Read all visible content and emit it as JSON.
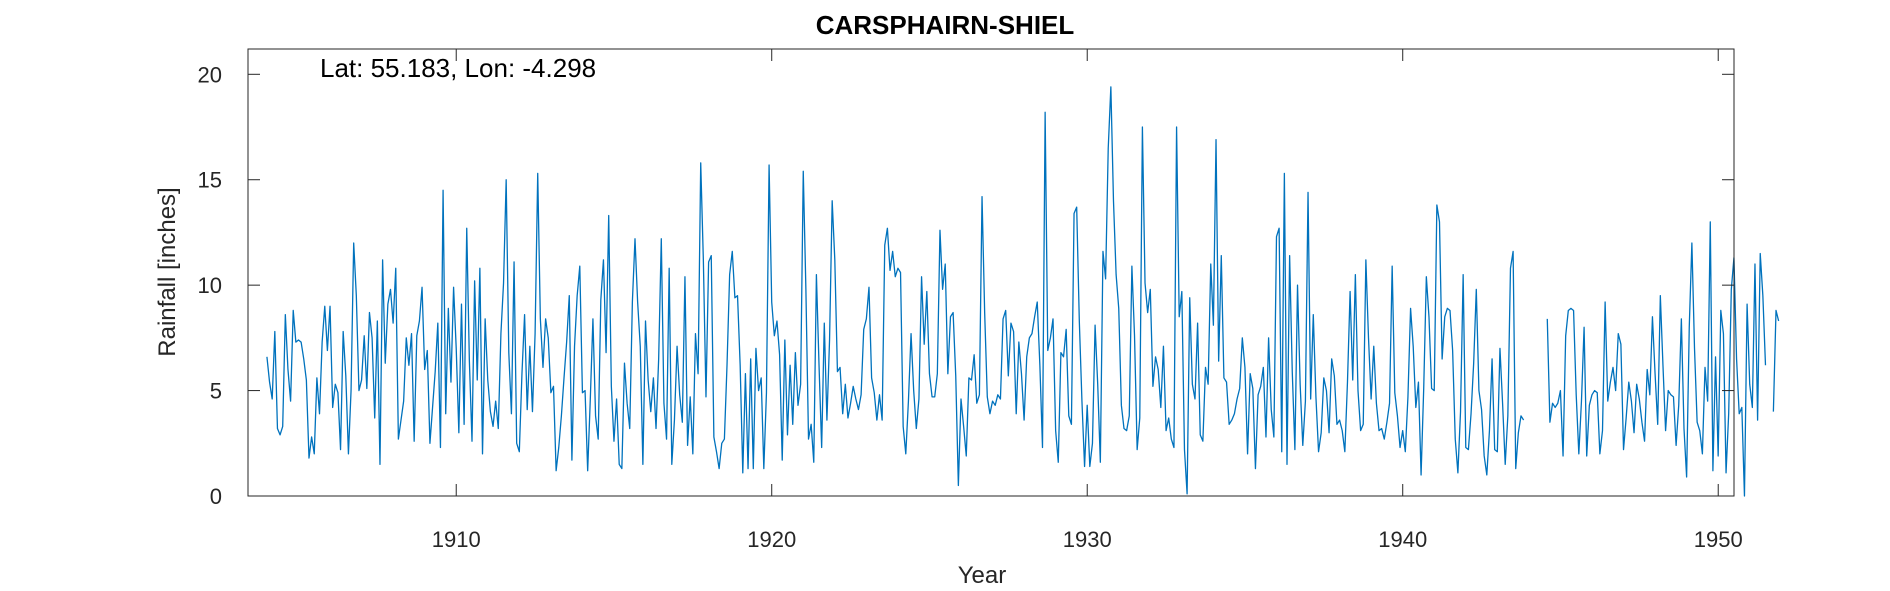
{
  "chart_data": {
    "type": "line",
    "title": "CARSPHAIRN-SHIEL",
    "xlabel": "Year",
    "ylabel": "Rainfall [inches]",
    "annotation": "Lat: 55.183, Lon: -4.298",
    "xlim": [
      1903.4,
      1950.5
    ],
    "ylim": [
      0,
      21.2
    ],
    "xticks": [
      1910,
      1920,
      1930,
      1940,
      1950
    ],
    "yticks": [
      0,
      5,
      10,
      15,
      20
    ],
    "grid": false,
    "legend": "none",
    "line_color": "#0072BD",
    "series": [
      {
        "start": 1904.0,
        "step": 0.08333,
        "values": [
          6.6,
          5.4,
          4.6,
          7.8,
          3.2,
          2.9,
          3.3,
          8.6,
          6.0,
          4.5,
          8.8,
          7.3,
          7.4,
          7.3,
          6.5,
          5.5,
          1.8,
          2.8,
          2.0,
          5.6,
          3.9,
          7.3,
          9.0,
          6.9,
          9.0,
          4.2,
          5.3,
          4.9,
          2.2,
          7.8,
          5.7,
          2.0,
          5.0,
          12.0,
          9.5,
          5.0,
          5.5,
          7.6,
          5.1,
          8.7,
          7.5,
          3.7,
          8.3,
          1.5,
          11.2,
          6.3,
          9.1,
          9.8,
          8.2,
          10.8,
          2.7,
          3.6,
          4.5,
          7.5,
          6.2,
          7.7,
          2.6,
          7.6,
          8.3,
          9.9,
          6.0,
          6.9,
          2.5,
          4.2,
          5.9,
          8.2,
          2.3,
          14.5,
          3.9,
          8.9,
          5.4,
          9.9,
          7.0,
          3.0,
          9.1,
          3.4,
          12.7,
          6.4,
          2.6,
          10.2,
          5.5,
          10.8,
          2.0,
          8.4,
          5.5,
          4.0,
          3.3,
          4.5,
          3.2,
          7.7,
          10.1,
          15.0,
          6.8,
          3.9,
          11.1,
          2.5,
          2.1,
          5.8,
          8.6,
          4.1,
          7.1,
          4.0,
          7.7,
          15.3,
          8.4,
          6.1,
          8.4,
          7.5,
          4.9,
          5.2,
          1.2,
          2.3,
          3.8,
          5.6,
          7.3,
          9.5,
          1.7,
          7.1,
          9.5,
          10.9,
          4.9,
          5.0,
          1.2,
          4.6,
          8.4,
          3.8,
          2.7,
          9.3,
          11.2,
          6.8,
          13.3,
          5.2,
          2.6,
          4.6,
          1.5,
          1.3,
          6.3,
          4.4,
          3.2,
          9.2,
          12.2,
          9.2,
          7.1,
          1.5,
          8.3,
          5.5,
          4.0,
          5.6,
          3.2,
          6.5,
          12.2,
          4.4,
          2.7,
          10.8,
          1.5,
          3.6,
          7.1,
          4.8,
          3.5,
          10.4,
          2.4,
          4.7,
          2.0,
          7.7,
          5.8,
          15.8,
          11.2,
          4.7,
          11.1,
          11.4,
          2.8,
          2.1,
          1.3,
          2.5,
          2.7,
          6.2,
          10.5,
          11.6,
          9.4,
          9.5,
          6.2,
          1.1,
          5.8,
          1.3,
          6.5,
          1.3,
          7.0,
          5.0,
          5.6,
          1.3,
          4.9,
          15.7,
          9.2,
          7.6,
          8.3,
          6.7,
          1.7,
          7.4,
          2.9,
          6.2,
          3.4,
          6.8,
          4.3,
          5.3,
          15.4,
          9.8,
          2.7,
          3.4,
          1.6,
          10.5,
          6.2,
          2.3,
          8.2,
          3.6,
          7.4,
          14.0,
          11.2,
          5.9,
          6.1,
          3.9,
          5.3,
          3.7,
          4.4,
          5.2,
          4.6,
          4.1,
          4.8,
          7.9,
          8.4,
          9.9,
          5.6,
          4.9,
          3.6,
          4.8,
          3.6,
          11.9,
          12.7,
          10.7,
          11.6,
          10.4,
          10.8,
          10.6,
          3.3,
          2.0,
          4.5,
          7.7,
          5.0,
          3.2,
          4.6,
          10.4,
          7.2,
          9.7,
          5.8,
          4.7,
          4.7,
          5.8,
          12.6,
          9.8,
          11.0,
          5.8,
          8.5,
          8.7,
          5.7,
          0.5,
          4.6,
          3.3,
          1.9,
          5.6,
          5.5,
          6.7,
          4.4,
          4.8,
          14.2,
          8.7,
          4.7,
          3.9,
          4.5,
          4.3,
          4.8,
          4.6,
          8.4,
          8.8,
          5.7,
          8.2,
          7.8,
          3.9,
          7.3,
          5.8,
          3.6,
          6.6,
          7.5,
          7.7,
          8.5,
          9.2,
          6.2,
          2.3,
          18.2,
          6.9,
          7.5,
          8.4,
          3.1,
          1.6,
          6.8,
          6.6,
          7.9,
          3.8,
          3.4,
          13.4,
          13.7,
          8.3,
          4.5,
          1.4,
          4.3,
          1.4,
          2.5,
          8.1,
          5.3,
          1.6,
          11.6,
          10.3,
          16.5,
          19.4,
          14.0,
          10.5,
          8.9,
          4.3,
          3.2,
          3.1,
          3.8,
          10.9,
          7.6,
          2.2,
          3.7,
          17.5,
          10.1,
          8.7,
          9.8,
          5.2,
          6.6,
          6.0,
          4.2,
          7.1,
          3.1,
          3.7,
          2.7,
          2.3,
          17.5,
          8.5,
          9.7,
          2.2,
          0.1,
          9.4,
          5.3,
          4.6,
          8.2,
          2.9,
          2.6,
          6.1,
          5.3,
          11.0,
          8.1,
          16.9,
          6.4,
          11.4,
          5.6,
          5.4,
          3.4,
          3.6,
          3.9,
          4.6,
          5.1,
          7.5,
          6.1,
          2.0,
          5.8,
          5.1,
          1.3,
          4.8,
          5.2,
          6.1,
          2.8,
          7.5,
          4.1,
          2.8,
          12.3,
          12.7,
          2.1,
          15.3,
          1.5,
          11.4,
          5.9,
          2.2,
          10.0,
          5.3,
          2.4,
          4.5,
          14.4,
          4.6,
          8.6,
          4.7,
          2.1,
          3.0,
          5.6,
          5.0,
          3.0,
          6.5,
          5.7,
          3.4,
          3.6,
          3.1,
          2.1,
          5.4,
          9.7,
          5.5,
          10.5,
          5.0,
          3.1,
          3.4,
          11.2,
          7.5,
          4.6,
          7.1,
          4.4,
          3.1,
          3.2,
          2.7,
          3.5,
          4.4,
          10.9,
          4.9,
          3.8,
          2.3,
          3.1,
          2.1,
          4.7,
          8.9,
          7.1,
          4.2,
          5.4,
          1.0,
          5.1,
          10.4,
          8.5,
          5.1,
          5.0,
          13.8,
          13.0,
          6.5,
          8.5,
          8.9,
          8.8,
          6.9,
          2.7,
          1.1,
          4.0,
          10.5,
          2.3,
          2.2,
          3.9,
          6.3,
          9.8,
          5.0,
          4.1,
          1.9,
          1.0,
          3.1,
          6.5,
          2.2,
          2.1,
          7.0,
          4.4,
          1.5,
          3.8,
          10.8,
          11.6,
          1.3,
          3.0,
          3.8,
          3.6,
          null,
          null,
          null,
          null,
          null,
          null,
          null,
          null,
          8.4,
          3.5,
          4.4,
          4.2,
          4.4,
          5.0,
          1.9,
          7.6,
          8.8,
          8.9,
          8.8,
          4.8,
          2.0,
          4.5,
          8.0,
          1.9,
          4.3,
          4.8,
          5.0,
          4.9,
          2.0,
          3.1,
          9.2,
          4.5,
          5.4,
          6.1,
          5.0,
          7.7,
          7.2,
          2.2,
          3.7,
          5.4,
          4.5,
          3.0,
          5.3,
          4.6,
          3.5,
          2.6,
          6.0,
          4.8,
          8.5,
          5.8,
          3.4,
          9.5,
          6.2,
          3.1,
          5.0,
          4.8,
          4.7,
          2.4,
          4.3,
          8.4,
          3.2,
          0.9,
          8.0,
          12.0,
          7.0,
          3.5,
          3.1,
          2.0,
          6.1,
          4.5,
          13.0,
          1.2,
          6.6,
          1.9,
          8.8,
          7.7,
          1.1,
          3.9,
          9.8,
          11.3,
          6.5,
          3.9,
          4.2,
          0.0,
          9.1,
          5.3,
          4.2,
          11.0,
          3.6,
          11.5,
          9.5,
          6.2,
          null,
          null,
          4.0,
          8.8,
          8.3,
          null,
          null,
          null,
          8.2
        ]
      }
    ]
  }
}
